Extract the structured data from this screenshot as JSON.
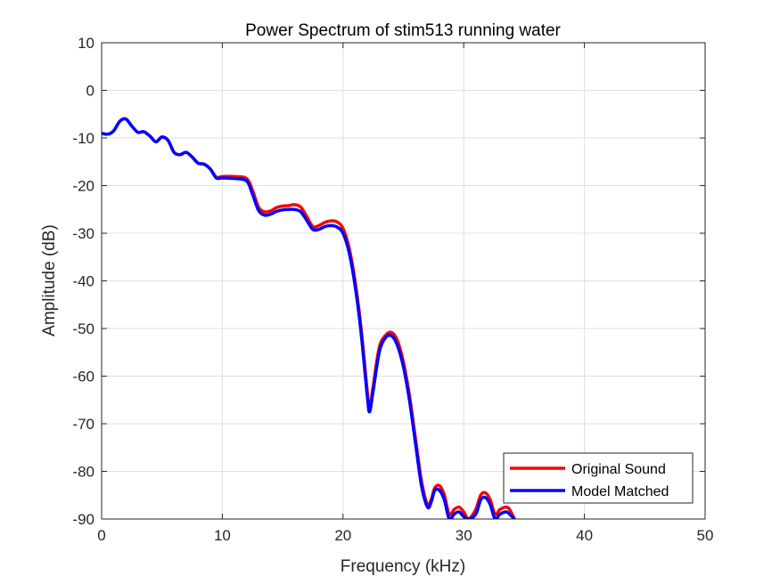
{
  "chart_data": {
    "type": "line",
    "title": "Power Spectrum of stim513 running water",
    "xlabel": "Frequency (kHz)",
    "ylabel": "Amplitude (dB)",
    "xlim": [
      0,
      50
    ],
    "ylim": [
      -90,
      10
    ],
    "xticks": [
      0,
      10,
      20,
      30,
      40,
      50
    ],
    "yticks": [
      10,
      0,
      -10,
      -20,
      -30,
      -40,
      -50,
      -60,
      -70,
      -80,
      -90
    ],
    "grid": true,
    "legend_position": "bottom-right",
    "series": [
      {
        "name": "Original Sound",
        "color": "#ff0000",
        "x": [
          0,
          0.5,
          1,
          1.5,
          2,
          2.5,
          3,
          3.5,
          4,
          4.5,
          5,
          5.5,
          6,
          6.5,
          7,
          7.5,
          8,
          8.5,
          9,
          9.5,
          10,
          11,
          12,
          12.5,
          13,
          13.5,
          14,
          14.5,
          15,
          15.5,
          16,
          16.5,
          17,
          17.5,
          18,
          18.5,
          19,
          19.5,
          20,
          20.5,
          21,
          21.5,
          22,
          22.2,
          22.5,
          23,
          23.5,
          24,
          24.5,
          25,
          25.5,
          26,
          26.5,
          27,
          27.3,
          27.6,
          28,
          28.4,
          28.8,
          29.2,
          29.6,
          30,
          30.4,
          31,
          31.4,
          31.8,
          32.2,
          32.6,
          33,
          33.5,
          33.8,
          34.2
        ],
        "y": [
          -9,
          -9.2,
          -8.5,
          -6.5,
          -6,
          -7.5,
          -8.8,
          -8.7,
          -9.6,
          -10.8,
          -9.8,
          -10.5,
          -13,
          -13.5,
          -13,
          -14,
          -15.3,
          -15.5,
          -16.5,
          -18.2,
          -18.1,
          -18.1,
          -18.5,
          -21,
          -24.5,
          -25.5,
          -25.3,
          -24.6,
          -24.3,
          -24.2,
          -24,
          -24.5,
          -26.5,
          -28.6,
          -28.4,
          -27.7,
          -27.4,
          -27.6,
          -29,
          -33,
          -40,
          -50,
          -63,
          -67,
          -62,
          -54,
          -51.5,
          -50.8,
          -52.5,
          -57,
          -64,
          -73,
          -82,
          -87,
          -86,
          -83.5,
          -83,
          -85,
          -89,
          -88,
          -87.5,
          -88.5,
          -90,
          -88,
          -85,
          -84.5,
          -86,
          -89,
          -88,
          -87.5,
          -88,
          -90
        ]
      },
      {
        "name": "Model Matched",
        "color": "#0000ff",
        "x": [
          0,
          0.5,
          1,
          1.5,
          2,
          2.5,
          3,
          3.5,
          4,
          4.5,
          5,
          5.5,
          6,
          6.5,
          7,
          7.5,
          8,
          8.5,
          9,
          9.5,
          10,
          11,
          12,
          12.5,
          13,
          13.5,
          14,
          14.5,
          15,
          15.5,
          16,
          16.5,
          17,
          17.5,
          18,
          18.5,
          19,
          19.5,
          20,
          20.5,
          21,
          21.5,
          22,
          22.2,
          22.5,
          23,
          23.5,
          24,
          24.5,
          25,
          25.5,
          26,
          26.5,
          27,
          27.3,
          27.6,
          28,
          28.4,
          28.8,
          29.2,
          29.6,
          30,
          30.4,
          31,
          31.4,
          31.8,
          32.2,
          32.6,
          33,
          33.5,
          33.8,
          34.2
        ],
        "y": [
          -9,
          -9.2,
          -8.5,
          -6.5,
          -6,
          -7.5,
          -8.8,
          -8.7,
          -9.6,
          -10.8,
          -9.8,
          -10.5,
          -13,
          -13.5,
          -13,
          -14,
          -15.3,
          -15.5,
          -16.5,
          -18.4,
          -18.4,
          -18.5,
          -19,
          -21.8,
          -25.2,
          -26.2,
          -26,
          -25.4,
          -25.1,
          -25,
          -25,
          -25.5,
          -27.3,
          -29.2,
          -29.2,
          -28.6,
          -28.4,
          -28.7,
          -30,
          -34,
          -41,
          -51,
          -64,
          -67.5,
          -63,
          -55,
          -52,
          -51.5,
          -53.5,
          -58,
          -65,
          -74,
          -83,
          -87.5,
          -86.5,
          -84,
          -84,
          -86,
          -90,
          -89,
          -88.5,
          -89.5,
          -90,
          -89,
          -86,
          -85.5,
          -87,
          -90,
          -89,
          -88.5,
          -89,
          -90
        ]
      }
    ]
  }
}
